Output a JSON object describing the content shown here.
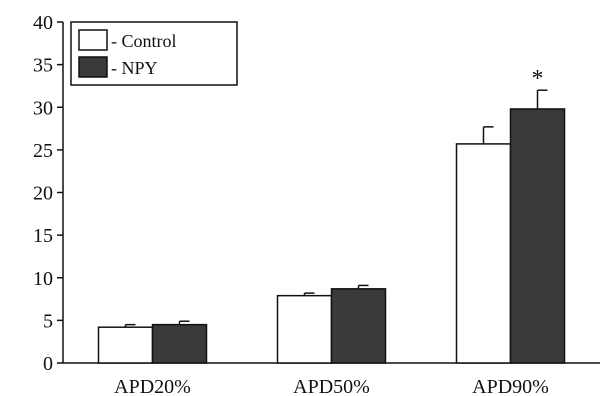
{
  "chart_data": {
    "type": "bar",
    "categories": [
      "APD20%",
      "APD50%",
      "APD90%"
    ],
    "series": [
      {
        "name": "- Control",
        "values": [
          4.2,
          7.9,
          25.7
        ],
        "errors": [
          0.3,
          0.3,
          2.0
        ],
        "color": "#ffffff"
      },
      {
        "name": "- NPY",
        "values": [
          4.5,
          8.7,
          29.8
        ],
        "errors": [
          0.4,
          0.4,
          2.2
        ],
        "color": "#3a3a3a"
      }
    ],
    "ylim": [
      0,
      40
    ],
    "yticks": [
      "0",
      "5",
      "10",
      "15",
      "20",
      "25",
      "30",
      "35",
      "40"
    ],
    "annotations": [
      {
        "category": "APD90%",
        "series": "- NPY",
        "text": "*"
      }
    ],
    "legend": "top-left",
    "grid": false
  }
}
